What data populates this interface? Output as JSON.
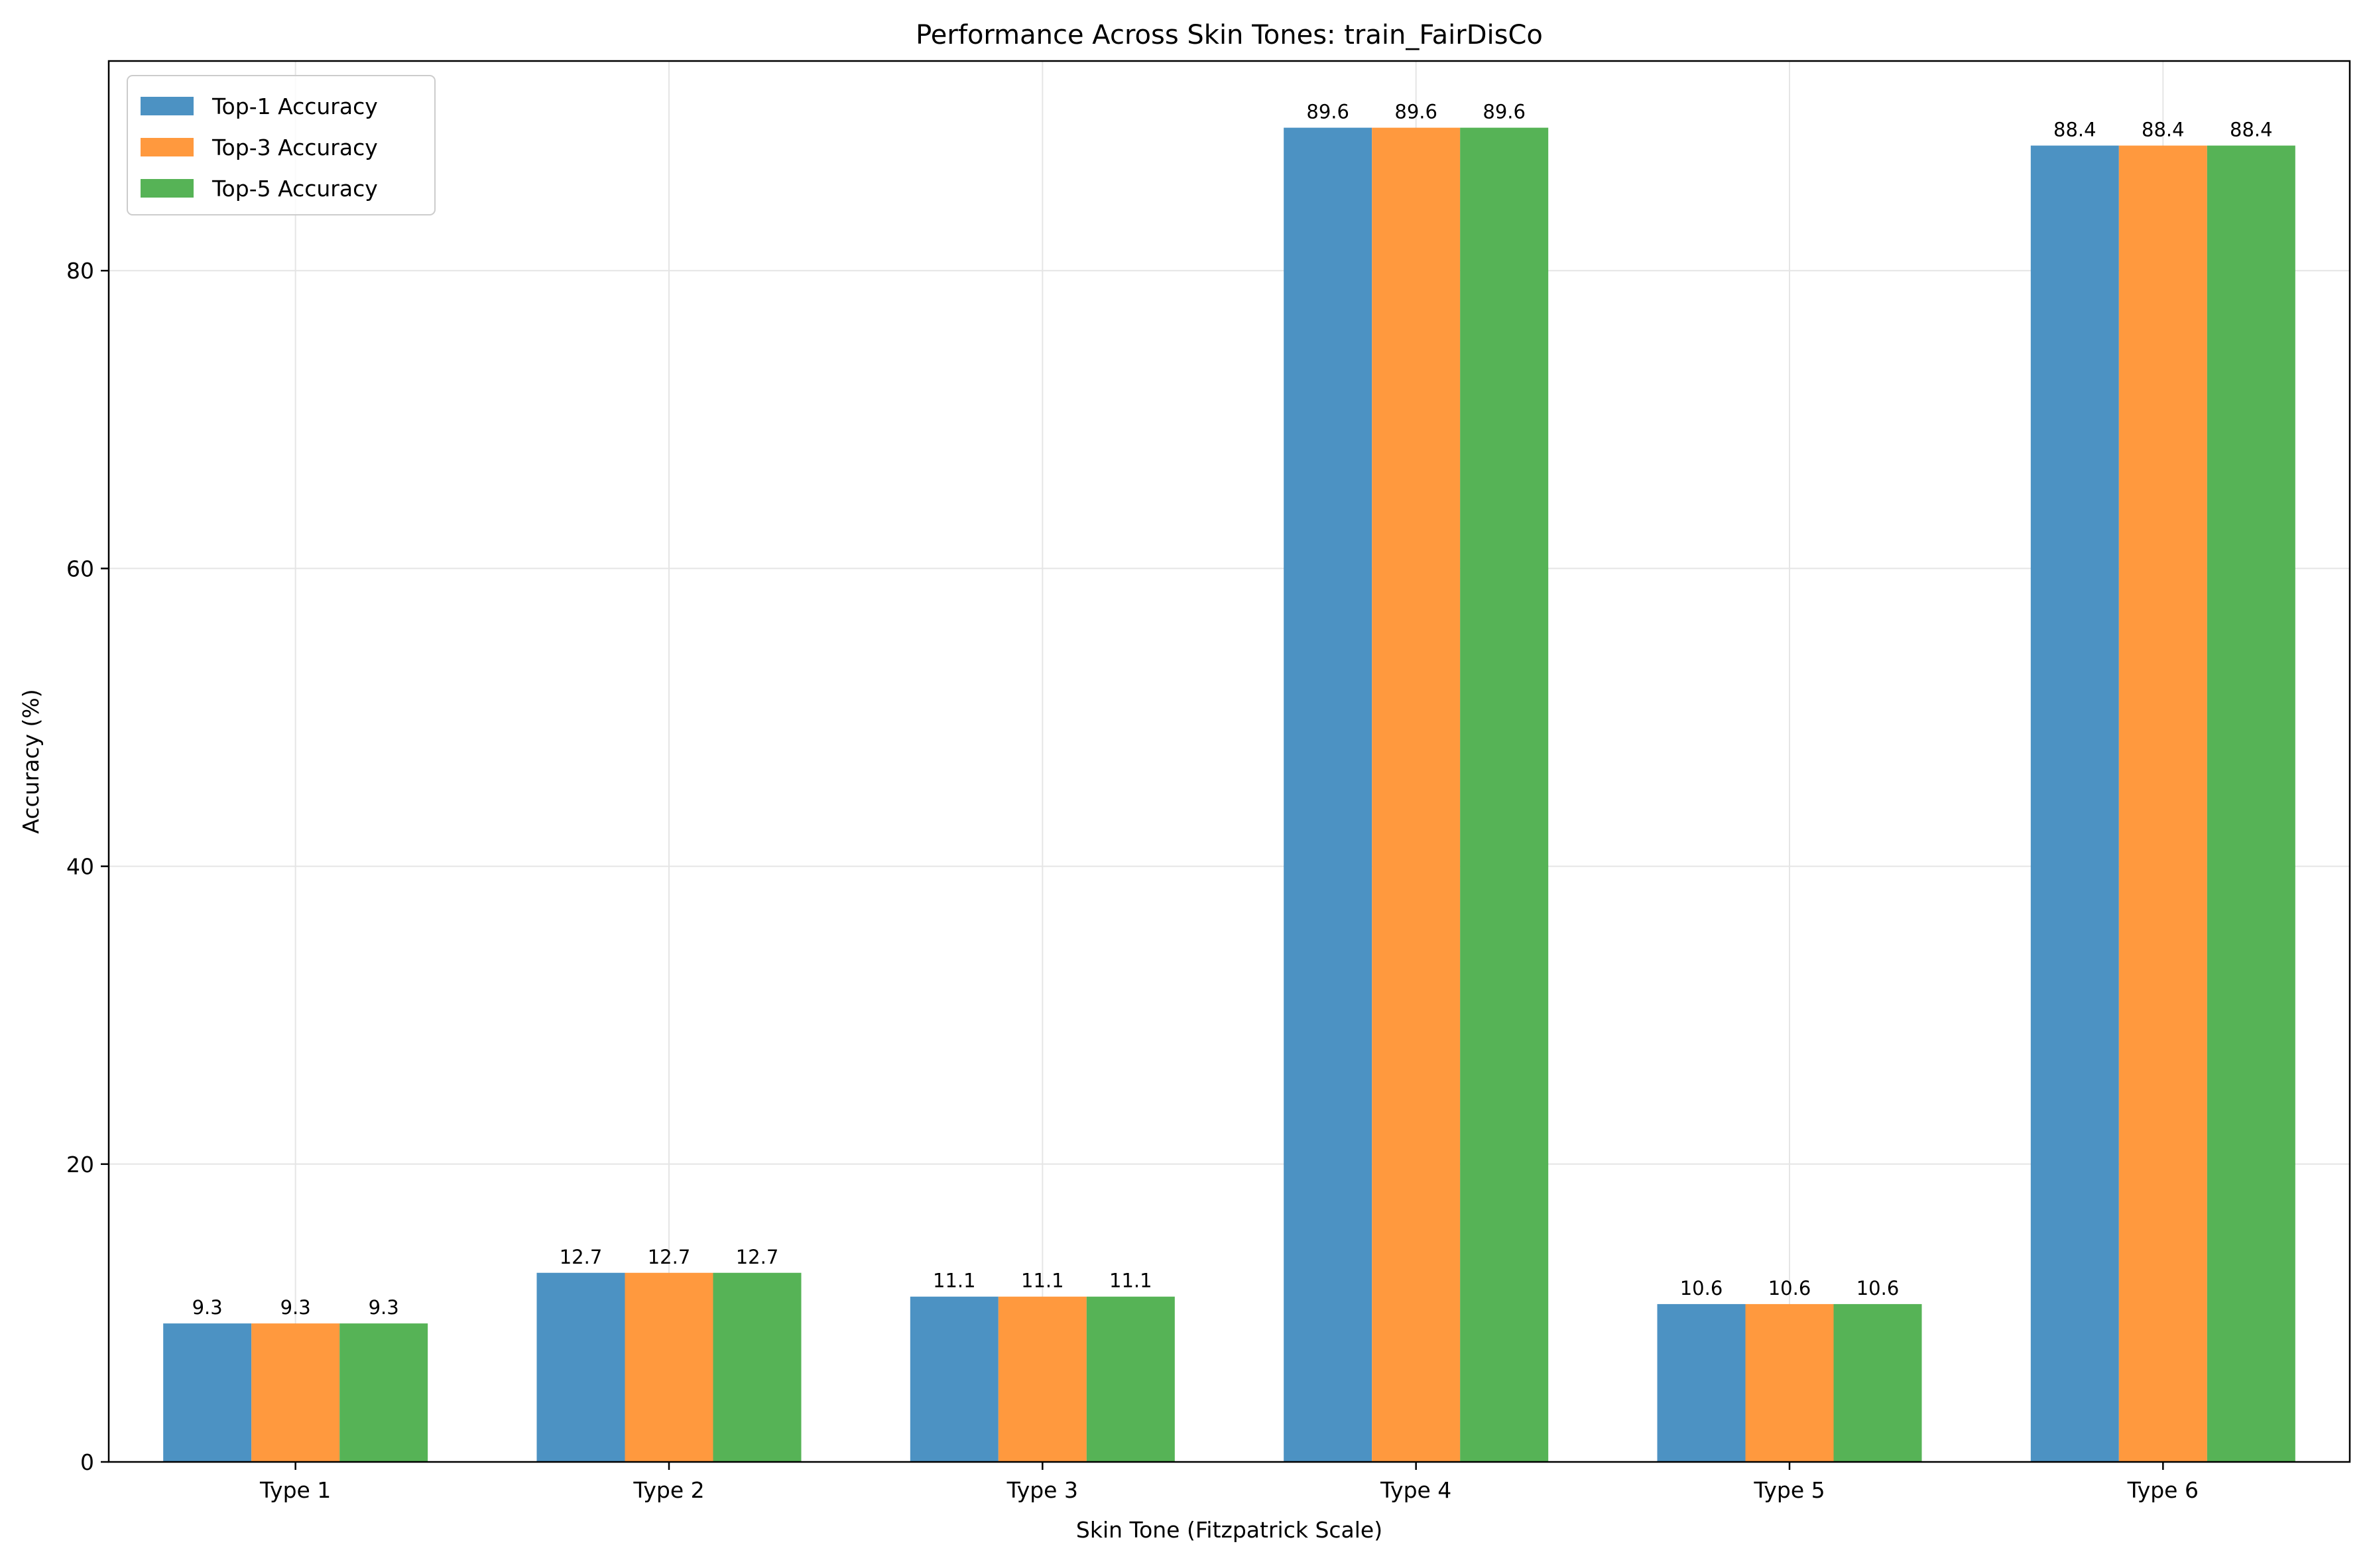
{
  "chart_data": {
    "type": "bar",
    "title": "Performance Across Skin Tones: train_FairDisCo",
    "xlabel": "Skin Tone (Fitzpatrick Scale)",
    "ylabel": "Accuracy (%)",
    "categories": [
      "Type 1",
      "Type 2",
      "Type 3",
      "Type 4",
      "Type 5",
      "Type 6"
    ],
    "series": [
      {
        "name": "Top-1 Accuracy",
        "color": "#4c92c3",
        "values": [
          9.3,
          12.7,
          11.1,
          89.6,
          10.6,
          88.4
        ]
      },
      {
        "name": "Top-3 Accuracy",
        "color": "#ff993e",
        "values": [
          9.3,
          12.7,
          11.1,
          89.6,
          10.6,
          88.4
        ]
      },
      {
        "name": "Top-5 Accuracy",
        "color": "#56b356",
        "values": [
          9.3,
          12.7,
          11.1,
          89.6,
          10.6,
          88.4
        ]
      }
    ],
    "ylim": [
      0,
      94.08
    ],
    "yticks": [
      0,
      20,
      40,
      60,
      80
    ],
    "grid": true,
    "legend": "top-left",
    "data_labels": true
  }
}
